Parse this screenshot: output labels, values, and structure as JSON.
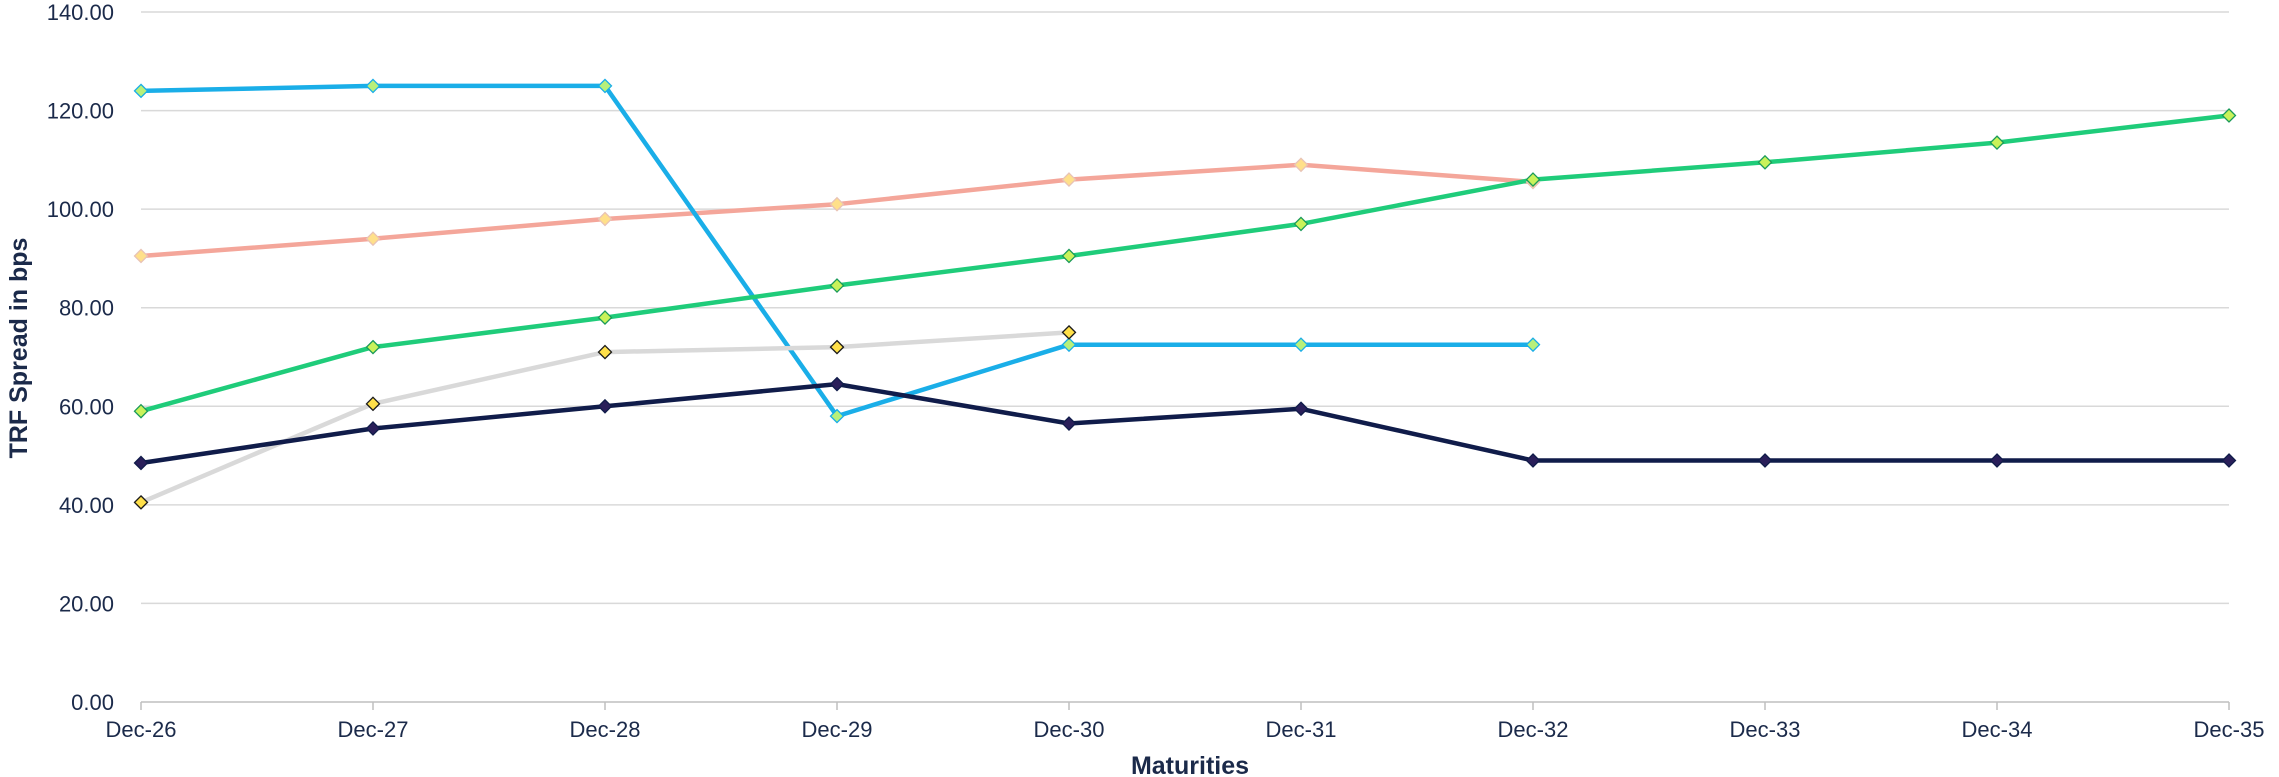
{
  "chart_data": {
    "type": "line",
    "xlabel": "Maturities",
    "ylabel": "TRF Spread  in bps",
    "categories": [
      "Dec-26",
      "Dec-27",
      "Dec-28",
      "Dec-29",
      "Dec-30",
      "Dec-31",
      "Dec-32",
      "Dec-33",
      "Dec-34",
      "Dec-35"
    ],
    "ylim": [
      0,
      140
    ],
    "yticks": [
      0,
      20,
      40,
      60,
      80,
      100,
      120,
      140
    ],
    "ytick_labels": [
      "0.00",
      "20.00",
      "40.00",
      "60.00",
      "80.00",
      "100.00",
      "120.00",
      "140.00"
    ],
    "grid": true,
    "legend": "none",
    "series": [
      {
        "color": "#f4a69a",
        "marker_fill": "#ffe08a",
        "marker_stroke": "#e8c3b5",
        "values": [
          90.5,
          94,
          98,
          101,
          106,
          109,
          105.5,
          null,
          null,
          null
        ]
      },
      {
        "color": "#1aaee8",
        "marker_fill": "#b8f07a",
        "marker_stroke": "#1aaee8",
        "values": [
          124,
          125,
          125,
          58,
          72.5,
          72.5,
          72.5,
          null,
          null,
          null
        ]
      },
      {
        "color": "#1fcc7a",
        "marker_fill": "#c9f25a",
        "marker_stroke": "#1a9a5a",
        "values": [
          59,
          72,
          78,
          84.5,
          90.5,
          97,
          106,
          109.5,
          113.5,
          119
        ]
      },
      {
        "color": "#d9d9d9",
        "marker_fill": "#ffe04a",
        "marker_stroke": "#1b1b1b",
        "values": [
          40.5,
          60.5,
          71,
          72,
          75,
          null,
          null,
          null,
          null,
          null
        ]
      },
      {
        "color": "#101c4a",
        "marker_fill": "#2a1f5a",
        "marker_stroke": "#101c4a",
        "values": [
          48.5,
          55.5,
          60,
          64.5,
          56.5,
          59.5,
          49,
          49,
          49,
          49
        ]
      }
    ]
  }
}
